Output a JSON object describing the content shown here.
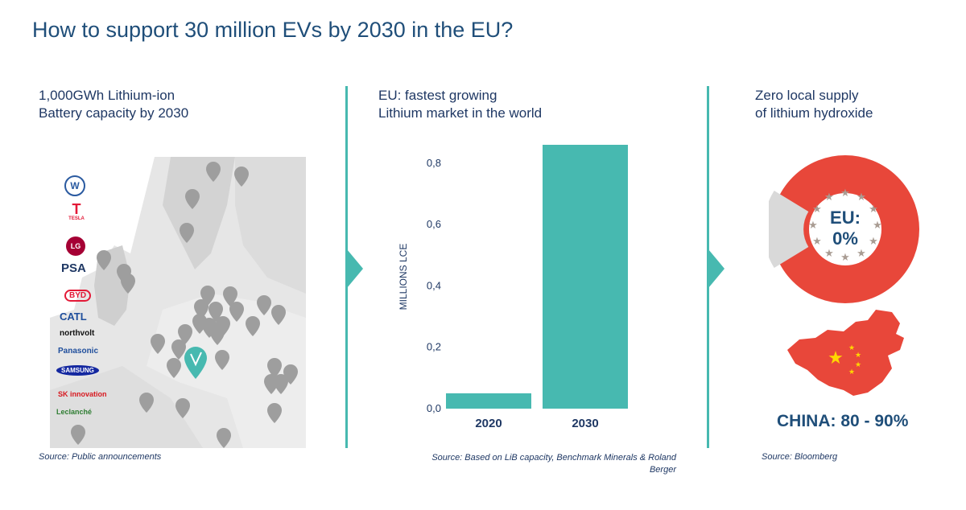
{
  "title": "How to support 30 million EVs by 2030 in the EU?",
  "panels": {
    "left": {
      "heading_line1": "1,000GWh Lithium-ion",
      "heading_line2": "Battery capacity by 2030",
      "source": "Source: Public announcements",
      "logos": [
        "TESLA",
        "PSA",
        "BYD",
        "CATL",
        "northvolt",
        "Panasonic",
        "SAMSUNG",
        "SK innovation",
        "Leclanché"
      ]
    },
    "middle": {
      "heading_line1": "EU: fastest growing",
      "heading_line2": "Lithium  market in the world",
      "source_line1": "Source: Based on LiB capacity, Benchmark Minerals & Roland",
      "source_line2": "Berger"
    },
    "right": {
      "heading_line1": "Zero local supply",
      "heading_line2": "of lithium hydroxide",
      "eu_line1": "EU:",
      "eu_line2": "0%",
      "china_label": "CHINA: 80 - 90%",
      "source": "Source: Bloomberg"
    }
  },
  "colors": {
    "accent": "#47b9b0",
    "title": "#1f4e79",
    "donut_red": "#e8473a",
    "donut_gray": "#d9d9d9",
    "map_land": "#e6e6e6",
    "pin": "#9e9e9e"
  },
  "chart_data": {
    "type": "bar",
    "categories": [
      "2020",
      "2030"
    ],
    "values": [
      0.05,
      0.86
    ],
    "title": "",
    "xlabel": "",
    "ylabel": "MILLIONS LCE",
    "ylim": [
      0,
      0.86
    ],
    "yticks": [
      "0,0",
      "0,2",
      "0,4",
      "0,6",
      "0,8"
    ],
    "ytick_values": [
      0,
      0.2,
      0.4,
      0.6,
      0.8
    ],
    "color": "#47b9b0",
    "grid": false
  }
}
